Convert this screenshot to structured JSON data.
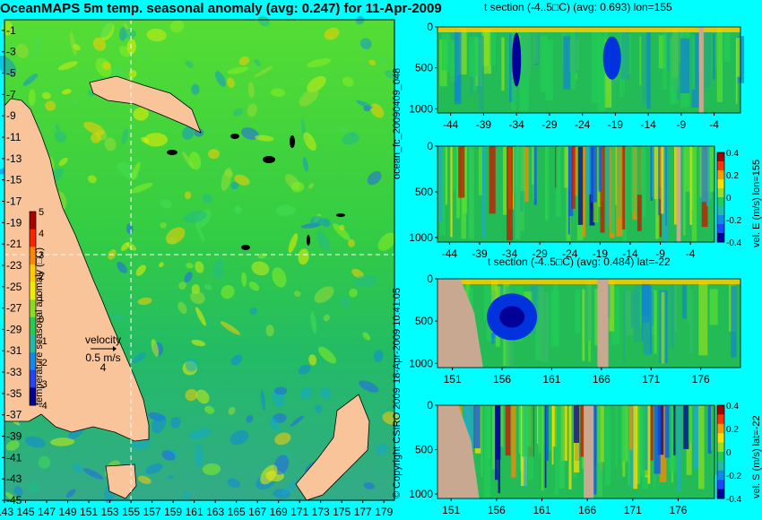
{
  "chart_data": [
    {
      "type": "heatmap",
      "title": "OceanMAPS 5m temp. seasonal anomaly (avg: 0.247) for 11-Apr-2009",
      "x_ticks": [
        "143",
        "145",
        "147",
        "149",
        "151",
        "153",
        "155",
        "157",
        "159",
        "161",
        "163",
        "165",
        "167",
        "169",
        "171",
        "173",
        "175",
        "177",
        "179"
      ],
      "y_ticks": [
        "-1",
        "-3",
        "-5",
        "-7",
        "-9",
        "-11",
        "-13",
        "-15",
        "-17",
        "-19",
        "-21",
        "-23",
        "-25",
        "-27",
        "-29",
        "-31",
        "-33",
        "-35",
        "-37",
        "-39",
        "-41",
        "-43",
        "-45"
      ],
      "xlim": [
        143,
        180
      ],
      "ylim": [
        -45,
        0
      ],
      "colorbar": {
        "label": "temperature seasonal anomaly (□C)",
        "ticks": [
          "5",
          "4",
          "3",
          "2",
          "1",
          "0",
          "-1",
          "-2",
          "-3",
          "-4"
        ],
        "range": [
          -4,
          5
        ]
      },
      "crosshair": {
        "lon": 155,
        "lat": -22
      },
      "velocity_legend": {
        "label": "velocity",
        "scale": "0.5 m/s",
        "arrow_value": "4"
      }
    },
    {
      "type": "heatmap",
      "title": "t section (-4..5□C) (avg: 0.693) lon=155",
      "x_ticks": [
        "-44",
        "-39",
        "-34",
        "-29",
        "-24",
        "-19",
        "-14",
        "-9",
        "-4"
      ],
      "y_ticks": [
        "0",
        "500",
        "1000"
      ],
      "xlim": [
        -46,
        0
      ],
      "ylim": [
        1050,
        0
      ]
    },
    {
      "type": "heatmap",
      "title": "",
      "x_ticks": [
        "-44",
        "-39",
        "-34",
        "-29",
        "-24",
        "-19",
        "-14",
        "-9",
        "-4"
      ],
      "y_ticks": [
        "0",
        "500",
        "1000"
      ],
      "xlim": [
        -46,
        0
      ],
      "ylim": [
        1050,
        0
      ],
      "colorbar": {
        "label": "vel. E (m/s) lon=155",
        "ticks": [
          "0.4",
          "0.2",
          "0",
          "-0.2",
          "-0.4"
        ],
        "range": [
          -0.4,
          0.4
        ]
      }
    },
    {
      "type": "heatmap",
      "title": "t section (-4..5□C) (avg: 0.484) lat=-22",
      "x_ticks": [
        "151",
        "156",
        "161",
        "166",
        "171",
        "176"
      ],
      "y_ticks": [
        "0",
        "500",
        "1000"
      ],
      "xlim": [
        149.5,
        180
      ],
      "ylim": [
        1050,
        0
      ]
    },
    {
      "type": "heatmap",
      "title": "",
      "x_ticks": [
        "151",
        "156",
        "161",
        "166",
        "171",
        "176"
      ],
      "y_ticks": [
        "0",
        "500",
        "1000"
      ],
      "xlim": [
        149.5,
        180
      ],
      "ylim": [
        1050,
        0
      ],
      "colorbar": {
        "label": "vel. S (m/s) lat=-22",
        "ticks": [
          "0.4",
          "0.2",
          "0",
          "-0.2",
          "-0.4"
        ],
        "range": [
          -0.4,
          0.4
        ]
      }
    }
  ],
  "side_labels": {
    "run_id": "ocean_fc_20090409_048",
    "run_time": "18-Apr-2009 10:41:05",
    "copyright": "© Copyright CSIRO 2009"
  },
  "colors": {
    "background": "#00ffff",
    "land": "#f9c49a",
    "section_land": "#c8a890",
    "deep": "#000080",
    "cold": "#0050ff",
    "neutral": "#22cc55",
    "warm": "#ffe000",
    "hot": "#c00000"
  }
}
